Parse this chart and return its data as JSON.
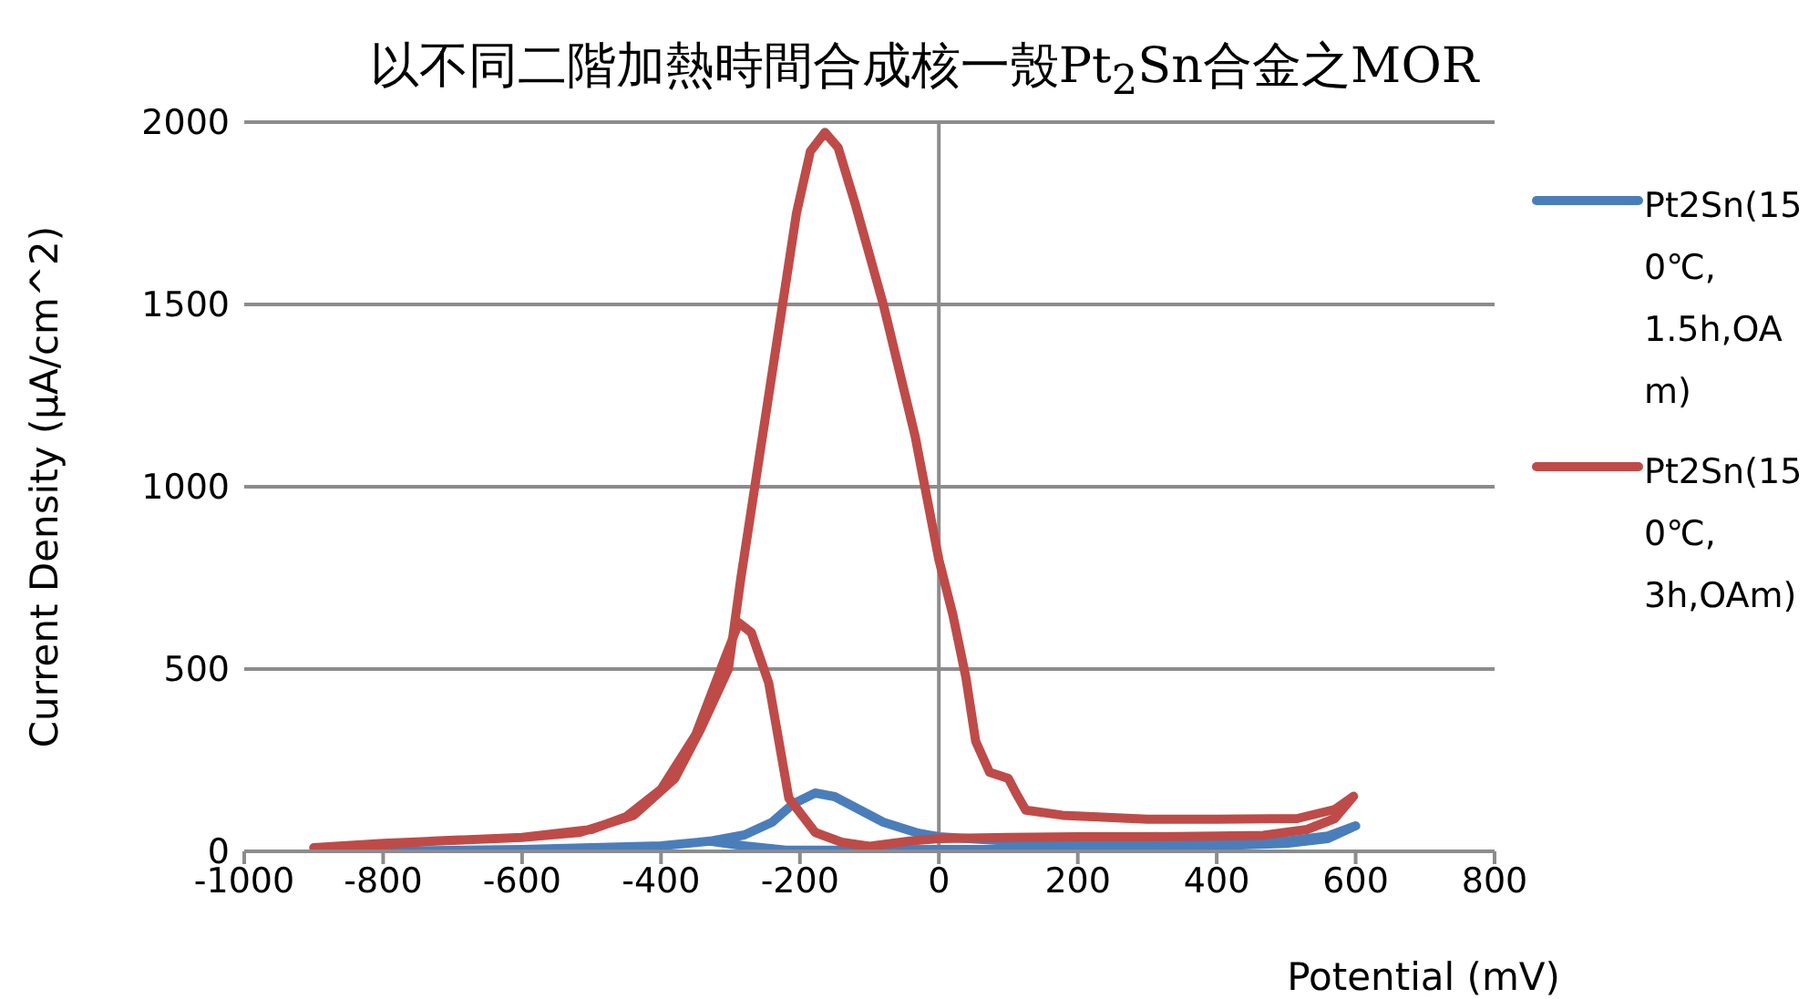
{
  "chart_data": {
    "type": "line",
    "title": "以不同二階加熱時間合成核一殼Pt$_{2}$Sn合金之MOR",
    "xlabel": "Potential (mV)",
    "ylabel": "Current Density (μA/cm^2)",
    "xlim": [
      -1000,
      800
    ],
    "xticks": [
      -1000,
      -800,
      -600,
      -400,
      -200,
      0,
      200,
      400,
      600,
      800
    ],
    "ylim": [
      0,
      2000
    ],
    "yticks": [
      0,
      500,
      1000,
      1500,
      2000
    ],
    "grid": "y",
    "legend": "top right",
    "marker": "none",
    "line_style": "solid",
    "ref_lines": [
      {
        "axis": "x",
        "value": 0,
        "color": "#8c8c8c"
      }
    ],
    "series": [
      {
        "name": "Pt2Sn(150℃, 1.5h,OAm)",
        "color": "#4a7ebb",
        "x": [
          -805,
          -600,
          -400,
          -330,
          -280,
          -240,
          -210,
          -178,
          -150,
          -120,
          -80,
          -30,
          0,
          100,
          200,
          300,
          400,
          500,
          560,
          600,
          560,
          500,
          400,
          200,
          0,
          -150,
          -220,
          -280,
          -330
        ],
        "values": [
          0,
          5,
          15,
          28,
          45,
          80,
          130,
          160,
          150,
          120,
          80,
          50,
          40,
          28,
          22,
          20,
          22,
          28,
          42,
          70,
          35,
          22,
          15,
          10,
          5,
          3,
          3,
          15,
          28
        ]
      },
      {
        "name": "Pt2Sn(150℃, 3h,OAm)",
        "color": "#be4b48",
        "x": [
          -900,
          -800,
          -700,
          -600,
          -500,
          -450,
          -400,
          -350,
          -310,
          -288,
          -270,
          -245,
          -216,
          -178,
          -140,
          -100,
          -42,
          0,
          100,
          200,
          300,
          400,
          467,
          530,
          570,
          597,
          570,
          516,
          400,
          300,
          178,
          125,
          111,
          100,
          73,
          53,
          39,
          20,
          0,
          -34,
          -80,
          -120,
          -145,
          -164,
          -185,
          -205,
          -225,
          -245,
          -265,
          -285,
          -303,
          -343,
          -380,
          -439,
          -517,
          -600,
          -728,
          -893
        ],
        "values": [
          10,
          22,
          30,
          38,
          60,
          95,
          170,
          320,
          520,
          627,
          600,
          462,
          146,
          52,
          25,
          14,
          28,
          35,
          38,
          40,
          40,
          42,
          44,
          60,
          90,
          151,
          115,
          90,
          88,
          88,
          99,
          113,
          160,
          200,
          217,
          302,
          476,
          650,
          800,
          1137,
          1500,
          1773,
          1930,
          1972,
          1920,
          1750,
          1500,
          1250,
          1000,
          750,
          500,
          335,
          200,
          99,
          52,
          38,
          28,
          5
        ]
      }
    ]
  }
}
